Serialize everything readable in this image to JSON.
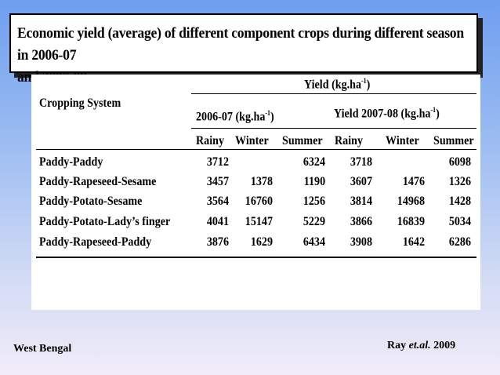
{
  "slide": {
    "title_line1": "Economic yield (average) of different component crops during different season in 2006-07",
    "title_line2": "and 2007-08"
  },
  "table": {
    "yield_header": "Yield (kg.ha",
    "yield_sup": "-1",
    "yield_close": ")",
    "cropping_system_header": "Cropping System",
    "period1_header": "2006-07 (kg.ha",
    "period1_sup": "-1",
    "period1_close": ")",
    "period2_header": "Yield 2007-08 (kg.ha",
    "period2_sup": "-1",
    "period2_close": ")",
    "season_headers": [
      "Rainy",
      "Winter",
      "Summer",
      "Rainy",
      "Winter",
      "Summer"
    ],
    "rows": [
      {
        "system": "Paddy-Paddy",
        "values": [
          "3712",
          "",
          "6324",
          "3718",
          "",
          "6098"
        ]
      },
      {
        "system": "Paddy-Rapeseed-Sesame",
        "values": [
          "3457",
          "1378",
          "1190",
          "3607",
          "1476",
          "1326"
        ]
      },
      {
        "system": "Paddy-Potato-Sesame",
        "values": [
          "3564",
          "16760",
          "1256",
          "3814",
          "14968",
          "1428"
        ]
      },
      {
        "system": "Paddy-Potato-Lady’s finger",
        "values": [
          "4041",
          "15147",
          "5229",
          "3866",
          "16839",
          "5034"
        ]
      },
      {
        "system": "Paddy-Rapeseed-Paddy",
        "values": [
          "3876",
          "1629",
          "6434",
          "3908",
          "1642",
          "6286"
        ]
      }
    ]
  },
  "footer": {
    "location": "West Bengal",
    "citation_author": "Ray",
    "citation_etal": "et.al.",
    "citation_year": "2009"
  }
}
